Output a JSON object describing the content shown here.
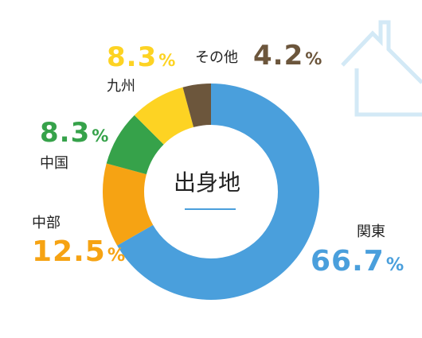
{
  "chart_data": {
    "type": "pie",
    "center_label": "出身地",
    "unit": "%",
    "slices": [
      {
        "name": "関東",
        "value": 66.7,
        "label": "66.7",
        "color": "#4a9fdc"
      },
      {
        "name": "中部",
        "value": 12.5,
        "label": "12.5",
        "color": "#f6a313"
      },
      {
        "name": "中国",
        "value": 8.3,
        "label": "8.3",
        "color": "#36a24a"
      },
      {
        "name": "九州",
        "value": 8.3,
        "label": "8.3",
        "color": "#fdd323"
      },
      {
        "name": "その他",
        "value": 4.2,
        "label": "4.2",
        "color": "#6c563c"
      }
    ]
  },
  "decor": {
    "icon": "house-outline-icon",
    "icon_color": "#d3e9f6"
  }
}
